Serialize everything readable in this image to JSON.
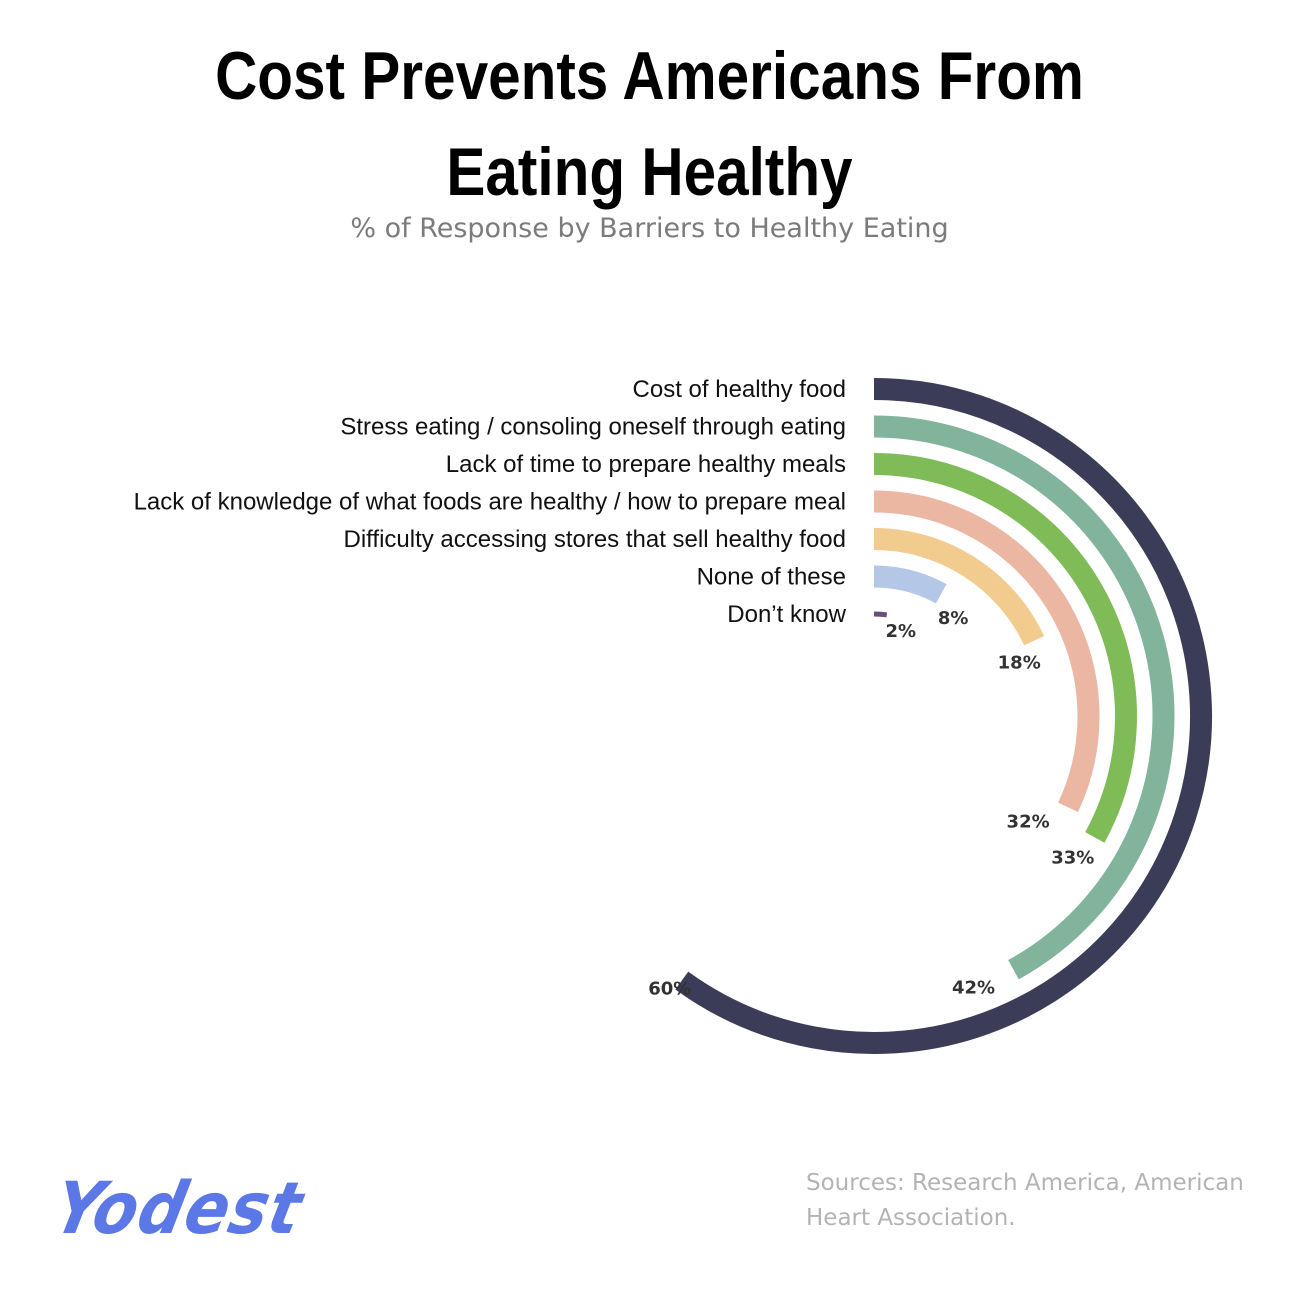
{
  "header": {
    "title": "Cost Prevents Americans From Eating Healthy",
    "subtitle": "% of Response by Barriers to Healthy Eating"
  },
  "chart_data": {
    "type": "radial-bar",
    "title": "Cost Prevents Americans From Eating Healthy",
    "subtitle": "% of Response by Barriers to Healthy Eating",
    "categories": [
      "Cost of healthy food",
      "Stress eating / consoling oneself through eating",
      "Lack of time to prepare healthy meals",
      "Lack of knowledge of what foods are healthy / how to prepare meal",
      "Difficulty accessing stores that sell healthy food",
      "None of these",
      "Don’t know"
    ],
    "values": [
      60,
      42,
      33,
      32,
      18,
      8,
      2
    ],
    "value_labels": [
      "60%",
      "42%",
      "33%",
      "32%",
      "18%",
      "8%",
      "2%"
    ],
    "colors": [
      "#3b3c57",
      "#82b39b",
      "#7fbc58",
      "#ebb7a2",
      "#f2cc8f",
      "#b4c7e7",
      "#6b4f7a"
    ],
    "value_max": 100
  },
  "footer": {
    "brand": "Yodest",
    "source": "Sources: Research America, American Heart Association."
  }
}
